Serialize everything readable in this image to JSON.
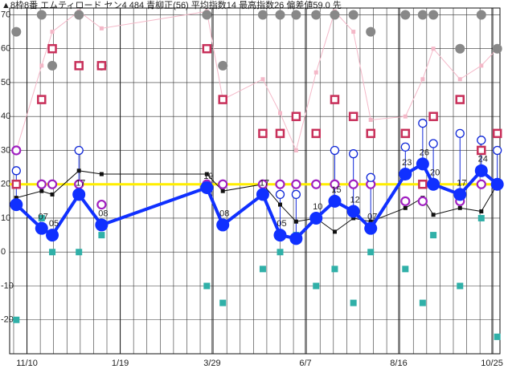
{
  "chart_data": {
    "type": "line",
    "title": "▲8枠8番 エムティロード セン4 484 青柳正(56) 平均指数14 最高指数26 偏差値59.0 先",
    "x": [
      -8,
      11,
      19,
      39,
      56,
      135,
      147,
      177,
      190,
      202,
      217,
      231,
      245,
      258,
      284,
      297,
      305,
      325,
      341,
      353
    ],
    "xlim": [
      -13,
      355
    ],
    "xticks": [
      {
        "value": 0,
        "label": "11/10"
      },
      {
        "value": 70,
        "label": "1/19"
      },
      {
        "value": 139,
        "label": "3/29"
      },
      {
        "value": 209,
        "label": "6/7"
      },
      {
        "value": 279,
        "label": "8/16"
      },
      {
        "value": 349,
        "label": "10/25"
      }
    ],
    "ylim": [
      -30,
      72
    ],
    "yticks": [
      -20,
      -10,
      0,
      10,
      20,
      30,
      40,
      50,
      60,
      70
    ],
    "grid": true,
    "reference_line": {
      "value": 20,
      "color": "#ffee00"
    },
    "series": [
      {
        "color": "#f4b8c8",
        "line": true,
        "marker": "small-square",
        "values": [
          30,
          55,
          65,
          71,
          66,
          71,
          45,
          51,
          41,
          30,
          53,
          71,
          65,
          39,
          40,
          51,
          60,
          51,
          55,
          60
        ]
      },
      {
        "color": "#111111",
        "line": true,
        "marker": "small-square",
        "values": [
          16,
          18,
          17,
          24,
          23,
          23,
          18,
          20,
          14,
          9,
          10,
          6,
          10,
          9,
          13,
          16,
          11,
          13,
          12,
          20
        ]
      },
      {
        "color": "#888888",
        "line": false,
        "marker": "dot",
        "values": [
          65,
          70,
          55,
          70,
          55,
          70,
          55,
          70,
          70,
          70,
          70,
          70,
          70,
          65,
          70,
          70,
          70,
          60,
          70,
          60
        ]
      },
      {
        "color": "#c8305a",
        "line": false,
        "marker": "open-square",
        "values": [
          20,
          45,
          60,
          55,
          55,
          60,
          45,
          35,
          35,
          40,
          35,
          45,
          40,
          35,
          35,
          20,
          40,
          45,
          30,
          35
        ]
      },
      {
        "color": "#30b0a8",
        "line": false,
        "marker": "square",
        "values": [
          -20,
          10,
          0,
          0,
          5,
          -10,
          -15,
          -5,
          0,
          5,
          -10,
          -5,
          -15,
          0,
          -5,
          -15,
          5,
          -10,
          10,
          -25
        ]
      },
      {
        "color": "#a020c0",
        "line": false,
        "marker": "ring",
        "values": [
          30,
          20,
          20,
          20,
          14,
          20,
          20,
          20,
          20,
          20,
          20,
          20,
          20,
          20,
          15,
          15,
          20,
          15,
          20,
          20
        ]
      },
      {
        "color": "#1028d8",
        "line": false,
        "marker": "open-circle",
        "stem": true,
        "values": [
          24,
          null,
          null,
          30,
          null,
          null,
          null,
          null,
          17,
          17,
          null,
          30,
          29,
          22,
          31,
          38,
          32,
          35,
          33,
          30
        ]
      },
      {
        "color": "#1030ff",
        "line": true,
        "marker": "big-dot",
        "main": true,
        "values": [
          14,
          7,
          5,
          17,
          8,
          19,
          8,
          17,
          5,
          4,
          10,
          15,
          12,
          7,
          23,
          26,
          20,
          17,
          24,
          20
        ],
        "value_labels": [
          null,
          "07",
          "05",
          "17",
          "08",
          "19",
          "08",
          "17",
          "05",
          null,
          "10",
          "15",
          "12",
          "07",
          "23",
          "26",
          "20",
          "17",
          "24",
          null
        ]
      }
    ]
  }
}
